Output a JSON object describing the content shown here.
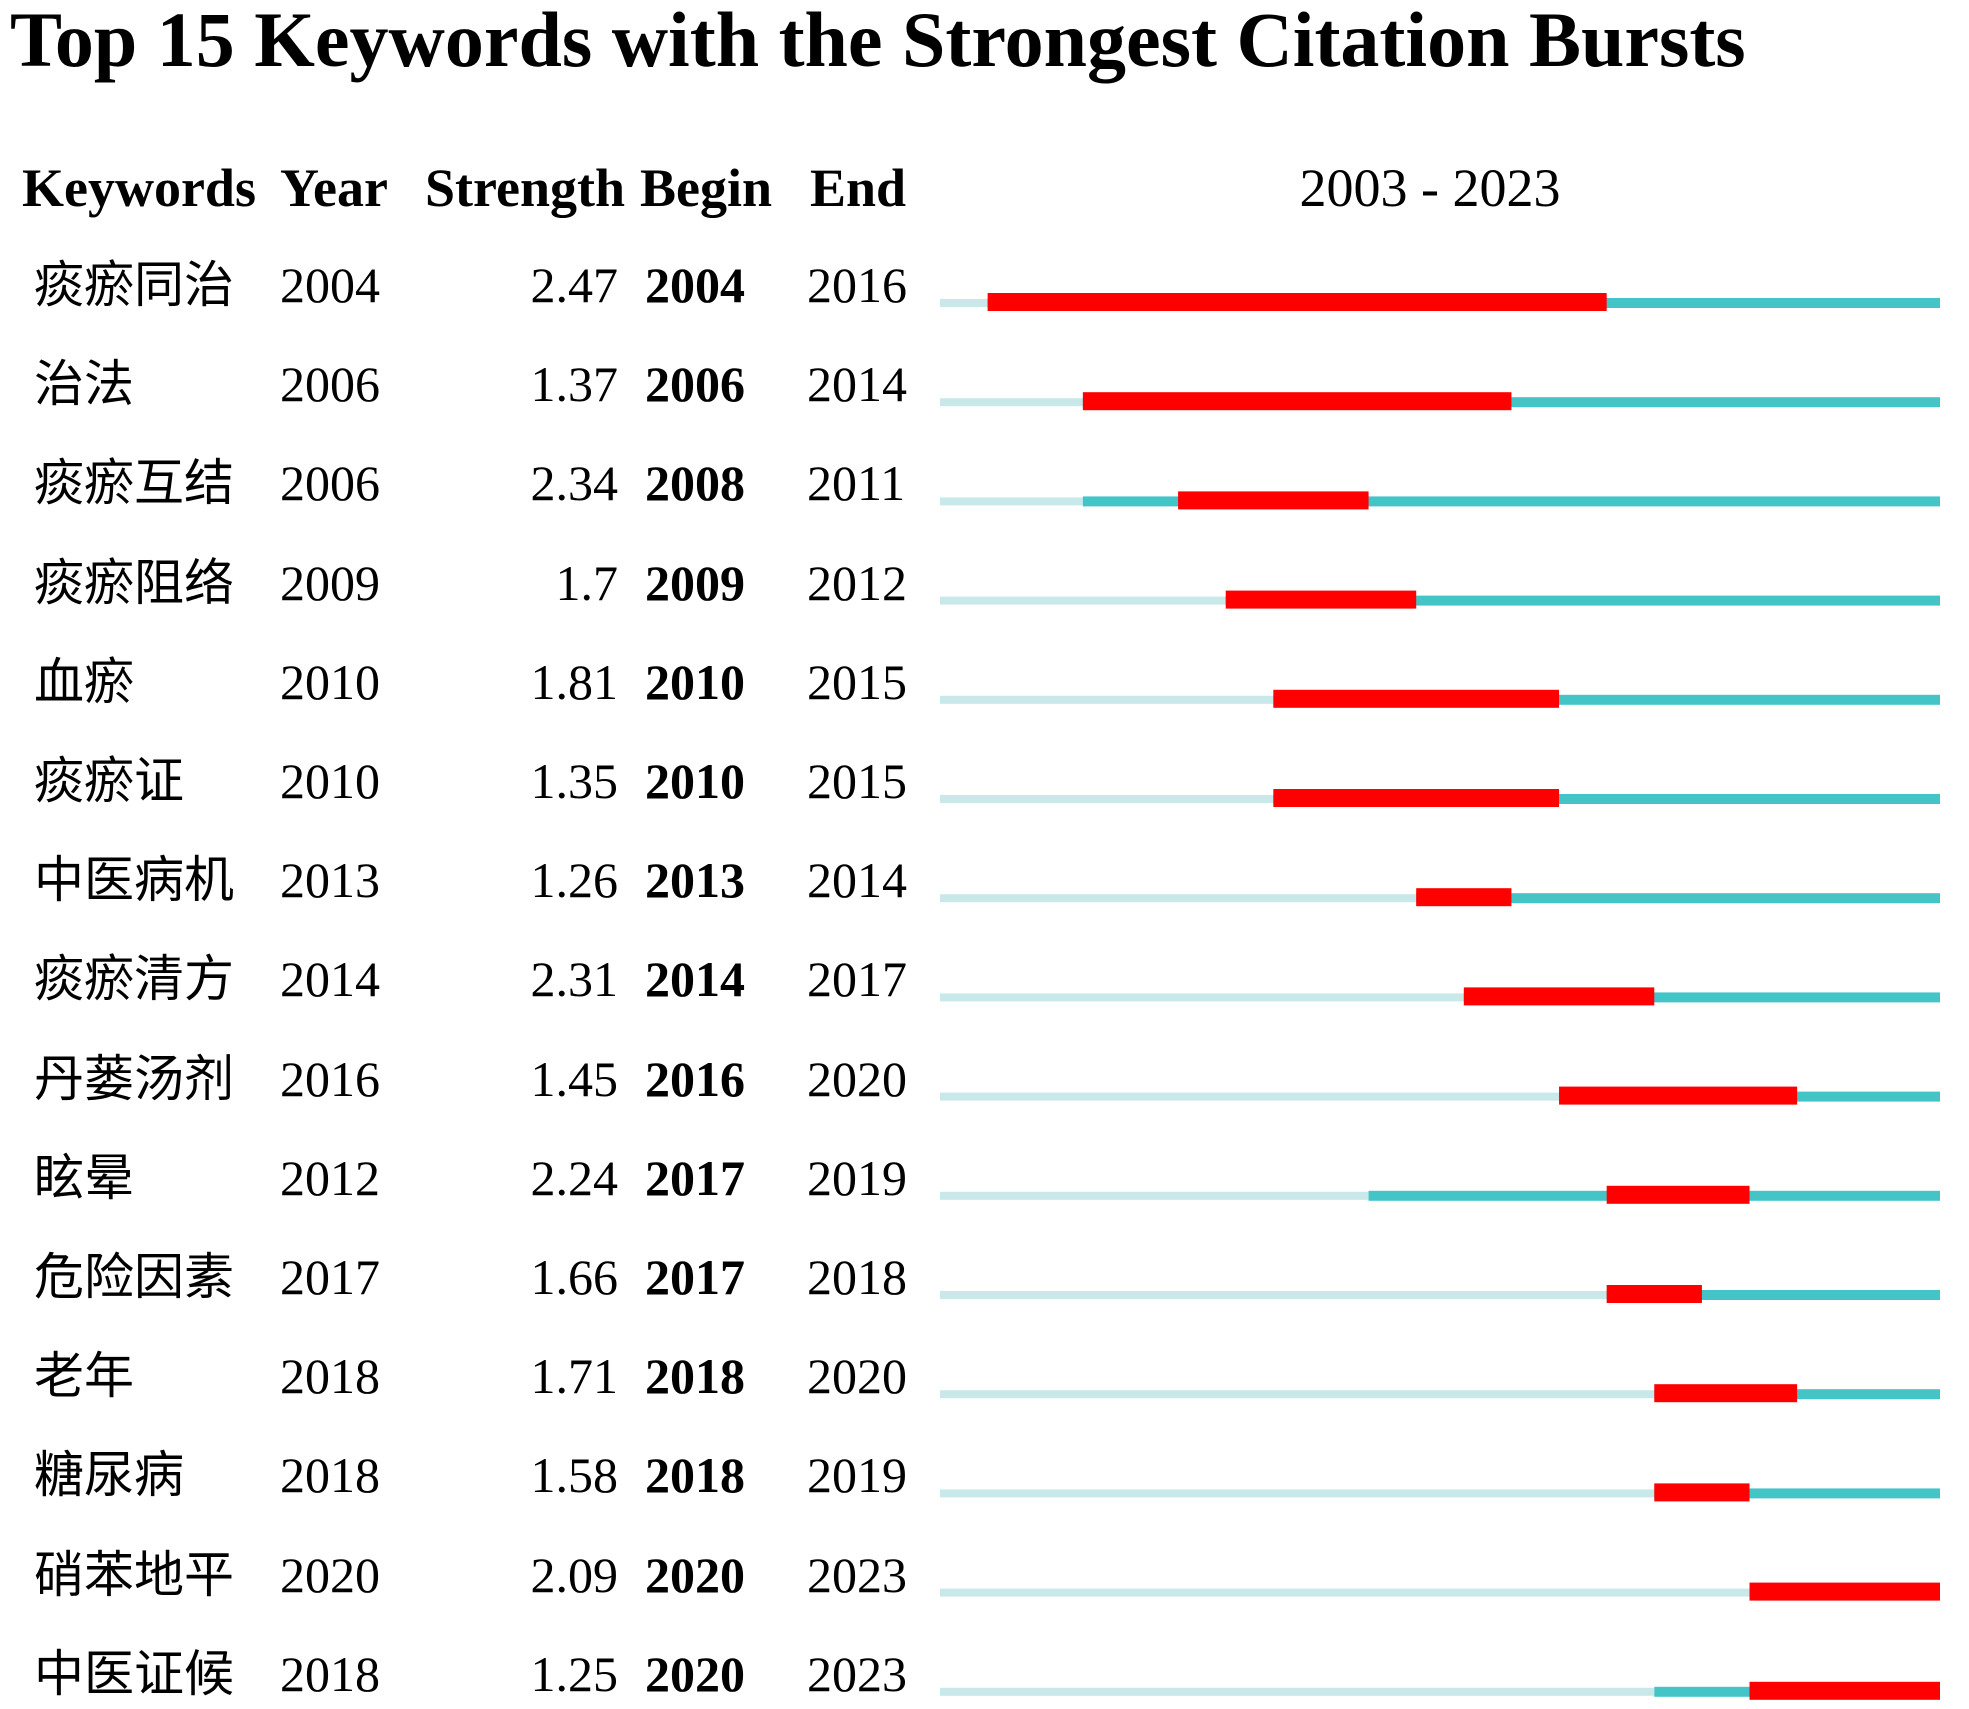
{
  "title": "Top 15 Keywords with the Strongest Citation Bursts",
  "header": {
    "keywords": "Keywords",
    "year": "Year",
    "strength": "Strength",
    "begin": "Begin",
    "end": "End",
    "range": "2003 - 2023"
  },
  "colors": {
    "burst": "#fe0000",
    "active": "#45c4c8",
    "inactive": "#c8e8ea"
  },
  "chart_data": {
    "type": "table",
    "timeline_start": 2003,
    "timeline_end": 2023,
    "rows": [
      {
        "keyword": "痰瘀同治",
        "year": "2004",
        "strength": "2.47",
        "begin": "2004",
        "end": "2016"
      },
      {
        "keyword": "治法",
        "year": "2006",
        "strength": "1.37",
        "begin": "2006",
        "end": "2014"
      },
      {
        "keyword": "痰瘀互结",
        "year": "2006",
        "strength": "2.34",
        "begin": "2008",
        "end": "2011"
      },
      {
        "keyword": "痰瘀阻络",
        "year": "2009",
        "strength": "1.7",
        "begin": "2009",
        "end": "2012"
      },
      {
        "keyword": "血瘀",
        "year": "2010",
        "strength": "1.81",
        "begin": "2010",
        "end": "2015"
      },
      {
        "keyword": "痰瘀证",
        "year": "2010",
        "strength": "1.35",
        "begin": "2010",
        "end": "2015"
      },
      {
        "keyword": "中医病机",
        "year": "2013",
        "strength": "1.26",
        "begin": "2013",
        "end": "2014"
      },
      {
        "keyword": "痰瘀清方",
        "year": "2014",
        "strength": "2.31",
        "begin": "2014",
        "end": "2017"
      },
      {
        "keyword": "丹蒌汤剂",
        "year": "2016",
        "strength": "1.45",
        "begin": "2016",
        "end": "2020"
      },
      {
        "keyword": "眩晕",
        "year": "2012",
        "strength": "2.24",
        "begin": "2017",
        "end": "2019"
      },
      {
        "keyword": "危险因素",
        "year": "2017",
        "strength": "1.66",
        "begin": "2017",
        "end": "2018"
      },
      {
        "keyword": "老年",
        "year": "2018",
        "strength": "1.71",
        "begin": "2018",
        "end": "2020"
      },
      {
        "keyword": "糖尿病",
        "year": "2018",
        "strength": "1.58",
        "begin": "2018",
        "end": "2019"
      },
      {
        "keyword": "硝苯地平",
        "year": "2020",
        "strength": "2.09",
        "begin": "2020",
        "end": "2023"
      },
      {
        "keyword": "中医证候",
        "year": "2018",
        "strength": "1.25",
        "begin": "2020",
        "end": "2023"
      }
    ]
  }
}
